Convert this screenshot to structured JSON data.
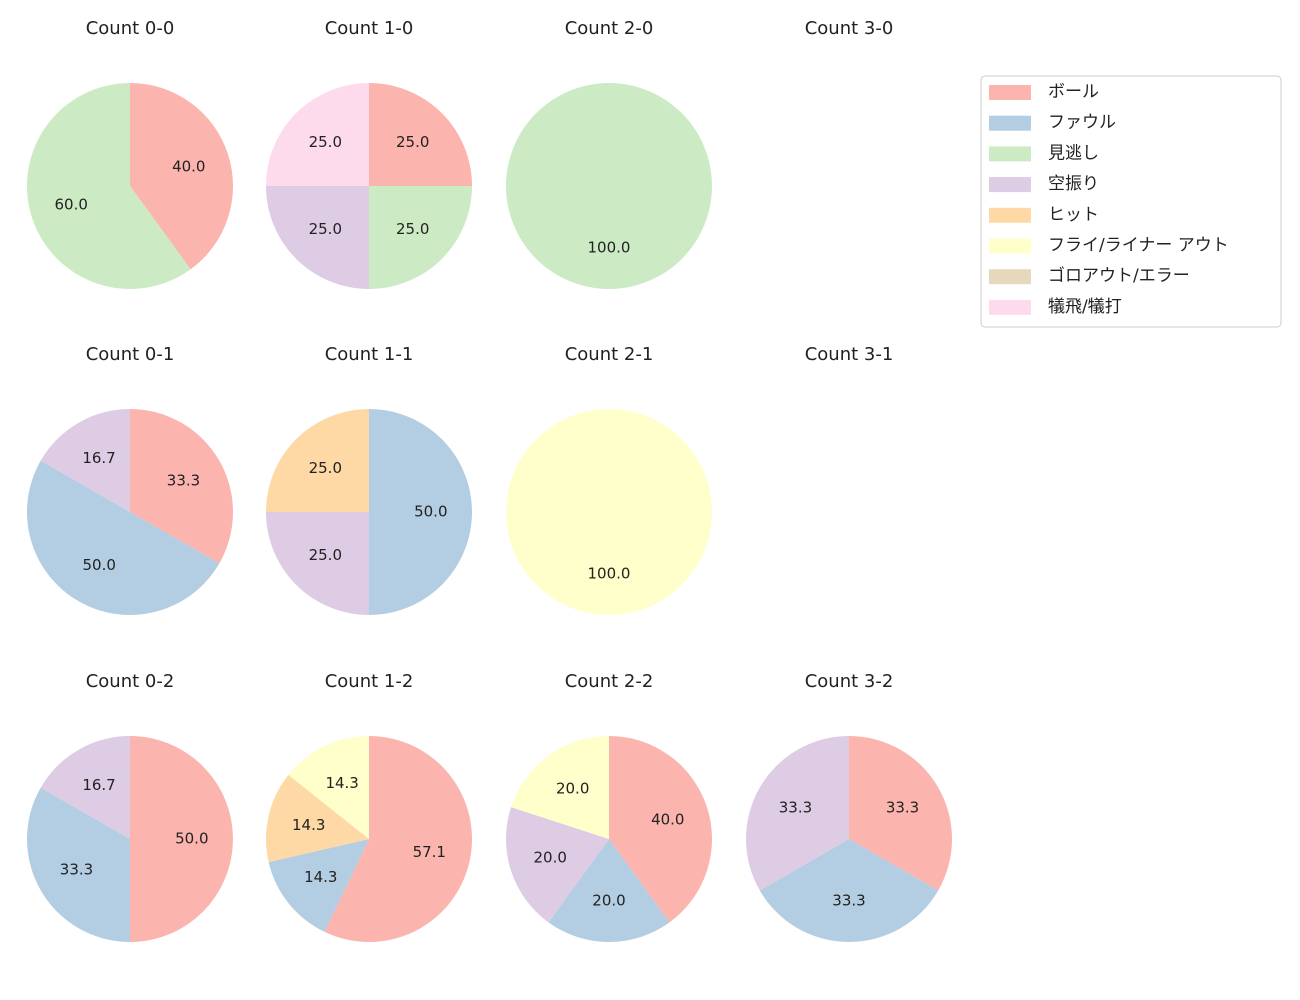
{
  "chart_data": [
    {
      "type": "pie",
      "title": "Count 0-0",
      "categories": [
        "ボール",
        "見逃し"
      ],
      "values": [
        40,
        60
      ],
      "value_labels": [
        "40.0",
        "60.0"
      ],
      "colors": [
        "#fbb4ae",
        "#ccebc5"
      ]
    },
    {
      "type": "pie",
      "title": "Count 1-0",
      "categories": [
        "ボール",
        "見逃し",
        "空振り",
        "犠飛/犠打"
      ],
      "values": [
        25,
        25,
        25,
        25
      ],
      "value_labels": [
        "25.0",
        "25.0",
        "25.0",
        "25.0"
      ],
      "colors": [
        "#fbb4ae",
        "#ccebc5",
        "#decbe4",
        "#fddaec"
      ]
    },
    {
      "type": "pie",
      "title": "Count 2-0",
      "categories": [
        "見逃し"
      ],
      "values": [
        100
      ],
      "value_labels": [
        "100.0"
      ],
      "colors": [
        "#ccebc5"
      ]
    },
    {
      "type": "pie",
      "title": "Count 3-0"
    },
    {
      "type": "pie",
      "title": "Count 0-1",
      "categories": [
        "ボール",
        "ファウル",
        "空振り"
      ],
      "values": [
        33.3,
        50,
        16.7
      ],
      "value_labels": [
        "33.3",
        "50.0",
        "16.7"
      ],
      "colors": [
        "#fbb4ae",
        "#b3cde3",
        "#decbe4"
      ]
    },
    {
      "type": "pie",
      "title": "Count 1-1",
      "categories": [
        "ファウル",
        "空振り",
        "ヒット"
      ],
      "values": [
        50,
        25,
        25
      ],
      "value_labels": [
        "50.0",
        "25.0",
        "25.0"
      ],
      "colors": [
        "#b3cde3",
        "#decbe4",
        "#fed9a6"
      ]
    },
    {
      "type": "pie",
      "title": "Count 2-1",
      "categories": [
        "フライ/ライナー アウト"
      ],
      "values": [
        100
      ],
      "value_labels": [
        "100.0"
      ],
      "colors": [
        "#ffffcc"
      ]
    },
    {
      "type": "pie",
      "title": "Count 3-1"
    },
    {
      "type": "pie",
      "title": "Count 0-2",
      "categories": [
        "ボール",
        "ファウル",
        "空振り"
      ],
      "values": [
        50,
        33.3,
        16.7
      ],
      "value_labels": [
        "50.0",
        "33.3",
        "16.7"
      ],
      "colors": [
        "#fbb4ae",
        "#b3cde3",
        "#decbe4"
      ]
    },
    {
      "type": "pie",
      "title": "Count 1-2",
      "categories": [
        "ボール",
        "ファウル",
        "ヒット",
        "フライ/ライナー アウト"
      ],
      "values": [
        57.1,
        14.3,
        14.3,
        14.3
      ],
      "value_labels": [
        "57.1",
        "14.3",
        "14.3",
        "14.3"
      ],
      "colors": [
        "#fbb4ae",
        "#b3cde3",
        "#fed9a6",
        "#ffffcc"
      ]
    },
    {
      "type": "pie",
      "title": "Count 2-2",
      "categories": [
        "ボール",
        "ファウル",
        "空振り",
        "フライ/ライナー アウト"
      ],
      "values": [
        40,
        20,
        20,
        20
      ],
      "value_labels": [
        "40.0",
        "20.0",
        "20.0",
        "20.0"
      ],
      "colors": [
        "#fbb4ae",
        "#b3cde3",
        "#decbe4",
        "#ffffcc"
      ]
    },
    {
      "type": "pie",
      "title": "Count 3-2",
      "categories": [
        "ボール",
        "ファウル",
        "空振り"
      ],
      "values": [
        33.3,
        33.3,
        33.3
      ],
      "value_labels": [
        "33.3",
        "33.3",
        "33.3"
      ],
      "colors": [
        "#fbb4ae",
        "#b3cde3",
        "#decbe4"
      ]
    }
  ],
  "legend": {
    "labels": [
      "ボール",
      "ファウル",
      "見逃し",
      "空振り",
      "ヒット",
      "フライ/ライナー アウト",
      "ゴロアウト/エラー",
      "犠飛/犠打"
    ],
    "colors": [
      "#fbb4ae",
      "#b3cde3",
      "#ccebc5",
      "#decbe4",
      "#fed9a6",
      "#ffffcc",
      "#e5d8bd",
      "#fddaec"
    ]
  }
}
